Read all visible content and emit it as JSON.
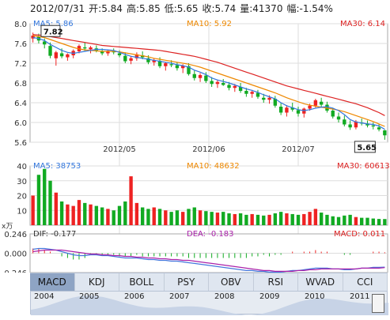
{
  "header": {
    "date": "2012/07/31",
    "open": "开:5.84",
    "high": "高:5.85",
    "low": "低:5.65",
    "close": "收:5.74",
    "volume": "量:41370",
    "change": "幅:-1.54%"
  },
  "colors": {
    "up": "#ee2222",
    "down": "#11aa22",
    "ma5": "#3377dd",
    "ma10": "#ee8800",
    "ma30": "#dd2222",
    "grid": "#dddddd",
    "panel_border": "#aaaaaa",
    "dif": "#4477dd",
    "dea": "#aa22aa"
  },
  "chart_data": [
    {
      "type": "candlestick",
      "price_ylim": [
        5.6,
        8.0
      ],
      "price_ticks": [
        "8.0",
        "7.6",
        "7.2",
        "6.8",
        "6.4",
        "6.0",
        "5.6"
      ],
      "x_date_labels": [
        "2012/05",
        "2012/06",
        "2012/07"
      ],
      "ma_labels": {
        "ma5": "MA5: 5.86",
        "ma10": "MA10: 5.92",
        "ma30": "MA30: 6.14"
      },
      "annotations": {
        "high_mark": "7.82",
        "low_mark": "5.65"
      },
      "ohlc": [
        [
          7.7,
          7.82,
          7.62,
          7.76
        ],
        [
          7.74,
          7.8,
          7.6,
          7.66
        ],
        [
          7.64,
          7.7,
          7.5,
          7.58
        ],
        [
          7.55,
          7.62,
          7.3,
          7.35
        ],
        [
          7.3,
          7.45,
          7.15,
          7.42
        ],
        [
          7.4,
          7.5,
          7.3,
          7.34
        ],
        [
          7.32,
          7.4,
          7.25,
          7.38
        ],
        [
          7.36,
          7.48,
          7.3,
          7.45
        ],
        [
          7.44,
          7.58,
          7.4,
          7.55
        ],
        [
          7.52,
          7.62,
          7.45,
          7.5
        ],
        [
          7.48,
          7.55,
          7.4,
          7.52
        ],
        [
          7.5,
          7.56,
          7.42,
          7.46
        ],
        [
          7.44,
          7.5,
          7.36,
          7.4
        ],
        [
          7.4,
          7.48,
          7.35,
          7.45
        ],
        [
          7.44,
          7.5,
          7.38,
          7.42
        ],
        [
          7.4,
          7.46,
          7.32,
          7.36
        ],
        [
          7.35,
          7.42,
          7.2,
          7.24
        ],
        [
          7.25,
          7.35,
          7.18,
          7.3
        ],
        [
          7.3,
          7.42,
          7.25,
          7.38
        ],
        [
          7.36,
          7.44,
          7.28,
          7.32
        ],
        [
          7.3,
          7.36,
          7.18,
          7.22
        ],
        [
          7.22,
          7.3,
          7.15,
          7.26
        ],
        [
          7.25,
          7.32,
          7.1,
          7.14
        ],
        [
          7.14,
          7.22,
          7.05,
          7.2
        ],
        [
          7.18,
          7.26,
          7.12,
          7.16
        ],
        [
          7.16,
          7.22,
          7.05,
          7.1
        ],
        [
          7.1,
          7.18,
          7.0,
          7.15
        ],
        [
          7.14,
          7.2,
          6.95,
          6.98
        ],
        [
          6.98,
          7.05,
          6.85,
          6.9
        ],
        [
          6.9,
          7.0,
          6.82,
          6.96
        ],
        [
          6.95,
          7.02,
          6.8,
          6.84
        ],
        [
          6.84,
          6.92,
          6.72,
          6.78
        ],
        [
          6.78,
          6.86,
          6.7,
          6.82
        ],
        [
          6.8,
          6.88,
          6.74,
          6.76
        ],
        [
          6.76,
          6.82,
          6.65,
          6.7
        ],
        [
          6.7,
          6.78,
          6.62,
          6.74
        ],
        [
          6.72,
          6.8,
          6.6,
          6.64
        ],
        [
          6.64,
          6.7,
          6.52,
          6.58
        ],
        [
          6.58,
          6.66,
          6.5,
          6.62
        ],
        [
          6.6,
          6.66,
          6.48,
          6.52
        ],
        [
          6.5,
          6.58,
          6.4,
          6.46
        ],
        [
          6.46,
          6.55,
          6.38,
          6.5
        ],
        [
          6.48,
          6.54,
          6.3,
          6.34
        ],
        [
          6.32,
          6.4,
          6.15,
          6.2
        ],
        [
          6.2,
          6.35,
          6.12,
          6.3
        ],
        [
          6.3,
          6.4,
          6.22,
          6.26
        ],
        [
          6.25,
          6.32,
          6.12,
          6.18
        ],
        [
          6.18,
          6.3,
          6.1,
          6.28
        ],
        [
          6.28,
          6.38,
          6.24,
          6.34
        ],
        [
          6.34,
          6.48,
          6.3,
          6.45
        ],
        [
          6.42,
          6.5,
          6.3,
          6.36
        ],
        [
          6.36,
          6.42,
          6.2,
          6.24
        ],
        [
          6.24,
          6.3,
          6.08,
          6.12
        ],
        [
          6.12,
          6.2,
          6.0,
          6.06
        ],
        [
          6.06,
          6.14,
          5.92,
          5.96
        ],
        [
          5.96,
          6.04,
          5.85,
          5.9
        ],
        [
          5.9,
          6.05,
          5.86,
          6.02
        ],
        [
          6.0,
          6.08,
          5.94,
          5.98
        ],
        [
          5.98,
          6.04,
          5.9,
          5.94
        ],
        [
          5.94,
          6.0,
          5.86,
          5.92
        ],
        [
          5.9,
          5.96,
          5.82,
          5.86
        ],
        [
          5.84,
          5.85,
          5.65,
          5.74
        ]
      ],
      "ma5": [
        7.72,
        7.7,
        7.66,
        7.58,
        7.52,
        7.46,
        7.42,
        7.4,
        7.42,
        7.44,
        7.46,
        7.48,
        7.48,
        7.47,
        7.46,
        7.42,
        7.38,
        7.34,
        7.32,
        7.3,
        7.28,
        7.26,
        7.24,
        7.22,
        7.2,
        7.17,
        7.15,
        7.12,
        7.06,
        7.02,
        6.97,
        6.9,
        6.86,
        6.83,
        6.8,
        6.76,
        6.72,
        6.68,
        6.65,
        6.61,
        6.56,
        6.52,
        6.48,
        6.4,
        6.34,
        6.3,
        6.26,
        6.24,
        6.26,
        6.29,
        6.31,
        6.32,
        6.29,
        6.24,
        6.16,
        6.06,
        6.01,
        5.99,
        5.97,
        5.96,
        5.93,
        5.86
      ],
      "ma10": [
        7.76,
        7.74,
        7.72,
        7.68,
        7.64,
        7.6,
        7.56,
        7.52,
        7.49,
        7.47,
        7.46,
        7.45,
        7.44,
        7.44,
        7.44,
        7.43,
        7.41,
        7.39,
        7.37,
        7.35,
        7.33,
        7.3,
        7.28,
        7.26,
        7.24,
        7.22,
        7.2,
        7.18,
        7.15,
        7.12,
        7.08,
        7.04,
        7.0,
        6.96,
        6.92,
        6.88,
        6.84,
        6.8,
        6.76,
        6.72,
        6.68,
        6.64,
        6.6,
        6.55,
        6.5,
        6.46,
        6.42,
        6.38,
        6.35,
        6.33,
        6.31,
        6.29,
        6.27,
        6.25,
        6.22,
        6.18,
        6.14,
        6.1,
        6.06,
        6.02,
        5.97,
        5.92
      ],
      "ma30": [
        7.78,
        7.77,
        7.76,
        7.74,
        7.72,
        7.7,
        7.68,
        7.66,
        7.64,
        7.62,
        7.6,
        7.58,
        7.56,
        7.55,
        7.54,
        7.53,
        7.52,
        7.51,
        7.5,
        7.49,
        7.48,
        7.47,
        7.46,
        7.44,
        7.42,
        7.4,
        7.38,
        7.36,
        7.34,
        7.31,
        7.28,
        7.25,
        7.22,
        7.18,
        7.14,
        7.1,
        7.06,
        7.02,
        6.98,
        6.94,
        6.9,
        6.86,
        6.82,
        6.78,
        6.74,
        6.71,
        6.68,
        6.65,
        6.62,
        6.59,
        6.56,
        6.53,
        6.5,
        6.47,
        6.44,
        6.41,
        6.38,
        6.34,
        6.3,
        6.25,
        6.2,
        6.14
      ]
    },
    {
      "type": "bar",
      "volume_ylim": [
        0,
        40000
      ],
      "volume_ticks": [
        "40",
        "30",
        "20",
        "10"
      ],
      "unit_label": "x万",
      "ma_labels": {
        "ma5": "MA5: 38753",
        "ma10": "MA10: 48632",
        "ma30": "MA30: 60613"
      },
      "values": [
        20000,
        34000,
        38000,
        30000,
        22000,
        16000,
        14000,
        13000,
        17000,
        15000,
        14000,
        13000,
        12000,
        11000,
        10000,
        13000,
        16000,
        33000,
        15000,
        12000,
        11000,
        12000,
        11000,
        10000,
        9000,
        10000,
        9000,
        11000,
        12000,
        10000,
        9500,
        9000,
        8500,
        9000,
        8000,
        7500,
        8000,
        7000,
        7500,
        7000,
        6500,
        7000,
        8000,
        9000,
        8000,
        7500,
        7000,
        7500,
        9000,
        11000,
        8500,
        7000,
        6000,
        5500,
        6500,
        7000,
        5500,
        5000,
        5000,
        4500,
        4200,
        4137
      ]
    },
    {
      "type": "line",
      "macd_ylim": [
        -0.246,
        0.246
      ],
      "macd_ticks": [
        "0.246",
        "0.000",
        "-0.246"
      ],
      "labels": {
        "dif": "DIF: -0.177",
        "dea": "DEA: -0.183",
        "macd": "MACD: 0.011"
      },
      "dif": [
        0.05,
        0.06,
        0.06,
        0.05,
        0.04,
        0.02,
        0.0,
        -0.02,
        -0.03,
        -0.03,
        -0.02,
        -0.02,
        -0.03,
        -0.03,
        -0.04,
        -0.05,
        -0.06,
        -0.06,
        -0.06,
        -0.07,
        -0.08,
        -0.08,
        -0.09,
        -0.09,
        -0.1,
        -0.1,
        -0.11,
        -0.12,
        -0.13,
        -0.14,
        -0.15,
        -0.16,
        -0.17,
        -0.18,
        -0.19,
        -0.2,
        -0.21,
        -0.22,
        -0.22,
        -0.23,
        -0.23,
        -0.24,
        -0.24,
        -0.24,
        -0.23,
        -0.22,
        -0.22,
        -0.21,
        -0.2,
        -0.19,
        -0.19,
        -0.19,
        -0.2,
        -0.2,
        -0.21,
        -0.21,
        -0.2,
        -0.19,
        -0.19,
        -0.18,
        -0.18,
        -0.177
      ],
      "dea": [
        0.02,
        0.03,
        0.04,
        0.04,
        0.04,
        0.04,
        0.03,
        0.02,
        0.01,
        0.0,
        -0.01,
        -0.01,
        -0.02,
        -0.02,
        -0.03,
        -0.03,
        -0.04,
        -0.04,
        -0.05,
        -0.05,
        -0.06,
        -0.06,
        -0.07,
        -0.07,
        -0.08,
        -0.08,
        -0.09,
        -0.09,
        -0.1,
        -0.11,
        -0.12,
        -0.13,
        -0.14,
        -0.15,
        -0.16,
        -0.17,
        -0.18,
        -0.19,
        -0.2,
        -0.21,
        -0.22,
        -0.22,
        -0.23,
        -0.23,
        -0.23,
        -0.23,
        -0.22,
        -0.22,
        -0.21,
        -0.21,
        -0.2,
        -0.2,
        -0.2,
        -0.2,
        -0.2,
        -0.2,
        -0.2,
        -0.19,
        -0.19,
        -0.19,
        -0.19,
        -0.183
      ]
    }
  ],
  "indicator_tabs": [
    "MACD",
    "KDJ",
    "BOLL",
    "PSY",
    "OBV",
    "RSI",
    "WVAD",
    "CCI"
  ],
  "active_tab": "MACD",
  "timeline_years": [
    "2004",
    "2005",
    "2006",
    "2007",
    "2008",
    "2009",
    "2010",
    "2011",
    "2"
  ]
}
